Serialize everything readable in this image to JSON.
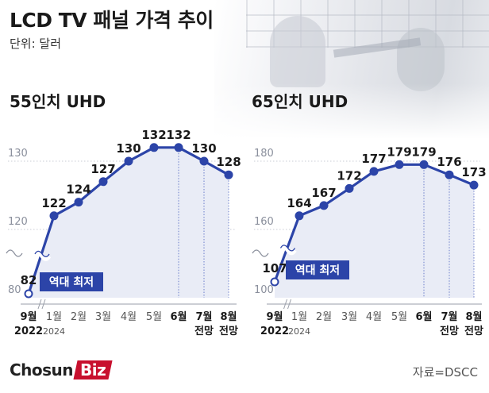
{
  "header": {
    "title": "LCD TV 패널 가격 추이",
    "unit": "단위: 달러"
  },
  "footer": {
    "logo_main": "Chosun",
    "logo_accent": "Biz",
    "source": "자료=DSCC"
  },
  "colors": {
    "line": "#2c44a8",
    "area": "#e9ecf6",
    "annotation_bg": "#2c44a8",
    "annotation_text": "#ffffff"
  },
  "chart_data": [
    {
      "type": "line",
      "title": "55인치 UHD",
      "categories": [
        {
          "month": "9월",
          "year": "2022"
        },
        {
          "month": "1월",
          "year": "2024"
        },
        {
          "month": "2월",
          "year": ""
        },
        {
          "month": "3월",
          "year": ""
        },
        {
          "month": "4월",
          "year": ""
        },
        {
          "month": "5월",
          "year": ""
        },
        {
          "month": "6월",
          "year": ""
        },
        {
          "month": "7월",
          "year": "전망"
        },
        {
          "month": "8월",
          "year": "전망"
        }
      ],
      "values": [
        82,
        122,
        124,
        127,
        130,
        132,
        132,
        130,
        128
      ],
      "value_labels": [
        "82",
        "122",
        "124",
        "127",
        "130",
        "132",
        "132",
        "130",
        "128"
      ],
      "y_ticks": [
        {
          "value": 80,
          "label": "80"
        },
        {
          "value": 120,
          "label": "120"
        },
        {
          "value": 130,
          "label": "130"
        }
      ],
      "ylim": [
        80,
        134
      ],
      "axis_break": true,
      "annotation": {
        "index": 0,
        "text": "역대 최저"
      },
      "forecast_from_index": 7
    },
    {
      "type": "line",
      "title": "65인치 UHD",
      "categories": [
        {
          "month": "9월",
          "year": "2022"
        },
        {
          "month": "1월",
          "year": "2024"
        },
        {
          "month": "2월",
          "year": ""
        },
        {
          "month": "3월",
          "year": ""
        },
        {
          "month": "4월",
          "year": ""
        },
        {
          "month": "5월",
          "year": ""
        },
        {
          "month": "6월",
          "year": ""
        },
        {
          "month": "7월",
          "year": "전망"
        },
        {
          "month": "8월",
          "year": "전망"
        }
      ],
      "values": [
        107,
        164,
        167,
        172,
        177,
        179,
        179,
        176,
        173
      ],
      "value_labels": [
        "107",
        "164",
        "167",
        "172",
        "177",
        "179",
        "179",
        "176",
        "173"
      ],
      "y_ticks": [
        {
          "value": 100,
          "label": "100"
        },
        {
          "value": 160,
          "label": "160"
        },
        {
          "value": 180,
          "label": "180"
        }
      ],
      "ylim": [
        100,
        183
      ],
      "axis_break": true,
      "annotation": {
        "index": 0,
        "text": "역대 최저"
      },
      "forecast_from_index": 7
    }
  ]
}
